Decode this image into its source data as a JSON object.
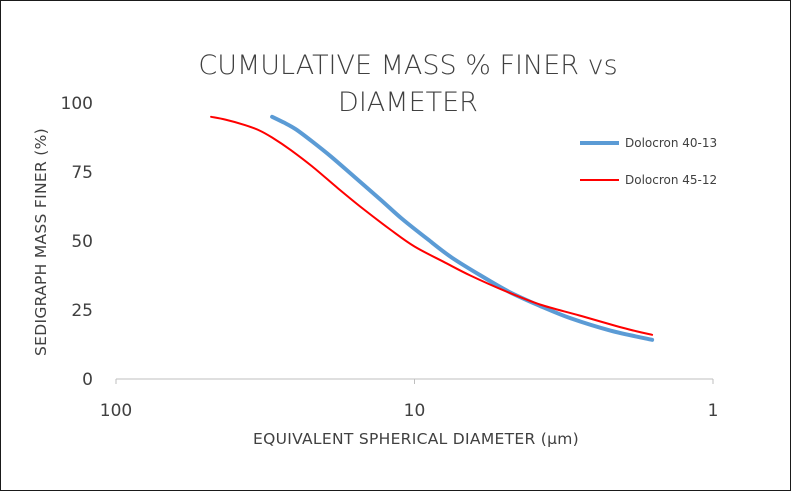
{
  "chart_data": {
    "type": "line",
    "title_lines": [
      "CUMULATIVE MASS % FINER vs",
      "DIAMETER"
    ],
    "xlabel": "EQUIVALENT SPHERICAL DIAMETER (µm)",
    "ylabel": "SEDIGRAPH MASS FINER (%)",
    "x_scale": "log-reversed",
    "xlim": [
      100,
      1
    ],
    "ylim": [
      0,
      100
    ],
    "x_ticks": [
      {
        "value": 100,
        "label": "100"
      },
      {
        "value": 10,
        "label": "10"
      },
      {
        "value": 1,
        "label": "1"
      }
    ],
    "y_ticks": [
      {
        "value": 0,
        "label": "0"
      },
      {
        "value": 25,
        "label": "25"
      },
      {
        "value": 50,
        "label": "50"
      },
      {
        "value": 75,
        "label": "75"
      },
      {
        "value": 100,
        "label": "100"
      }
    ],
    "grid": false,
    "legend_position": "right",
    "series": [
      {
        "name": "Dolocron 40-13",
        "color": "#5b9bd5",
        "x": [
          30,
          27.5,
          25,
          22,
          19,
          16,
          13,
          11,
          9,
          7.5,
          6,
          4.8,
          3.8,
          3,
          2.2,
          1.6
        ],
        "y": [
          95,
          93,
          90.5,
          86,
          80.5,
          73.5,
          65,
          58,
          50.5,
          44,
          37.5,
          31.5,
          26.5,
          22,
          17.5,
          14.2
        ]
      },
      {
        "name": "Dolocron 45-12",
        "color": "#ff0000",
        "x": [
          48,
          43,
          37,
          33,
          30,
          26,
          22,
          18,
          15,
          12,
          10,
          8,
          6.5,
          5,
          3.8,
          2.8,
          2,
          1.6
        ],
        "y": [
          95,
          94,
          92,
          90,
          87.5,
          83,
          77,
          69,
          62,
          54,
          48,
          42.5,
          37.5,
          32,
          27,
          23,
          18.5,
          16
        ]
      }
    ]
  }
}
